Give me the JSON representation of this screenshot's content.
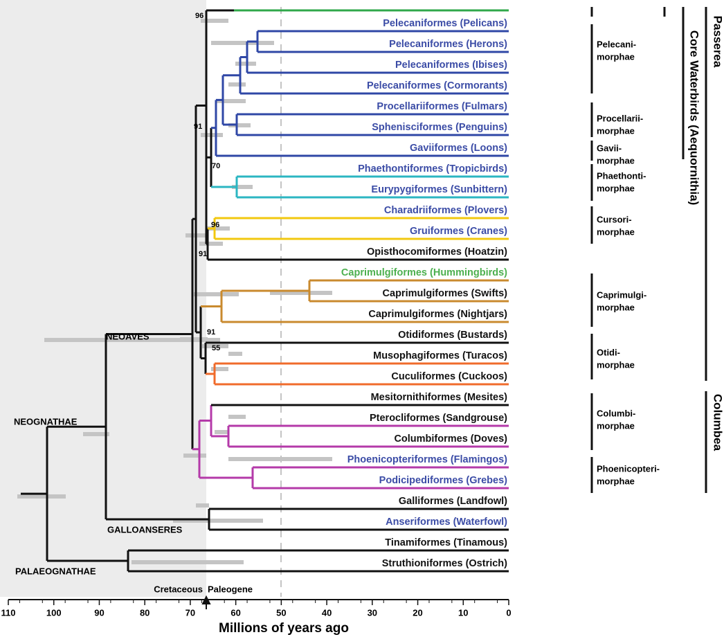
{
  "leaves": [
    {
      "label": "Pelecaniformes (Pelicans)",
      "color": "#3b4ca6"
    },
    {
      "label": "Pelecaniformes (Herons)",
      "color": "#3b4ca6"
    },
    {
      "label": "Pelecaniformes (Ibises)",
      "color": "#3b4ca6"
    },
    {
      "label": "Pelecaniformes (Cormorants)",
      "color": "#3b4ca6"
    },
    {
      "label": "Procellariiformes (Fulmars)",
      "color": "#3b4ca6"
    },
    {
      "label": "Sphenisciformes (Penguins)",
      "color": "#3b4ca6"
    },
    {
      "label": "Gaviiformes (Loons)",
      "color": "#3b4ca6"
    },
    {
      "label": "Phaethontiformes (Tropicbirds)",
      "color": "#3b4ca6"
    },
    {
      "label": "Eurypygiformes (Sunbittern)",
      "color": "#3b4ca6"
    },
    {
      "label": "Charadriiformes (Plovers)",
      "color": "#3b4ca6"
    },
    {
      "label": "Gruiformes (Cranes)",
      "color": "#3b4ca6"
    },
    {
      "label": "Opisthocomiformes (Hoatzin)",
      "color": "#111111"
    },
    {
      "label": "Caprimulgiformes (Hummingbirds)",
      "color": "#4cb04f"
    },
    {
      "label": "Caprimulgiformes (Swifts)",
      "color": "#111111"
    },
    {
      "label": "Caprimulgiformes (Nightjars)",
      "color": "#111111"
    },
    {
      "label": "Otidiformes (Bustards)",
      "color": "#111111"
    },
    {
      "label": "Musophagiformes (Turacos)",
      "color": "#111111"
    },
    {
      "label": "Cuculiformes (Cuckoos)",
      "color": "#111111"
    },
    {
      "label": "Mesitornithiformes (Mesites)",
      "color": "#111111"
    },
    {
      "label": "Pterocliformes (Sandgrouse)",
      "color": "#111111"
    },
    {
      "label": "Columbiformes (Doves)",
      "color": "#111111"
    },
    {
      "label": "Phoenicopteriformes (Flamingos)",
      "color": "#3b4ca6"
    },
    {
      "label": "Podicipediformes (Grebes)",
      "color": "#3b4ca6"
    },
    {
      "label": "Galliformes (Landfowl)",
      "color": "#111111"
    },
    {
      "label": "Anseriformes (Waterfowl)",
      "color": "#3b4ca6"
    },
    {
      "label": "Tinamiformes (Tinamous)",
      "color": "#111111"
    },
    {
      "label": "Struthioniformes (Ostrich)",
      "color": "#111111"
    }
  ],
  "node_supports": [
    "96",
    "91",
    "70",
    "96",
    "91",
    "91",
    "55"
  ],
  "clades": [
    "NEOAVES",
    "NEOGNATHAE",
    "GALLOANSERES",
    "PALAEOGNATHAE"
  ],
  "groups": [
    {
      "lines": [
        "Pelecani-",
        "morphae"
      ]
    },
    {
      "lines": [
        "Procellarii-",
        "morphae"
      ]
    },
    {
      "lines": [
        "Gavii-",
        "morphae"
      ]
    },
    {
      "lines": [
        "Phaethonti-",
        "morphae"
      ]
    },
    {
      "lines": [
        "Cursori-",
        "morphae"
      ]
    },
    {
      "lines": [
        "Caprimulgi-",
        "morphae"
      ]
    },
    {
      "lines": [
        "Otidi-",
        "morphae"
      ]
    },
    {
      "lines": [
        "Columbi-",
        "morphae"
      ]
    },
    {
      "lines": [
        "Phoenicopteri-",
        "morphae"
      ]
    }
  ],
  "superorders": [
    "Passerea",
    "Core Waterbirds (Aequornithia)",
    "Columbea"
  ],
  "periods": [
    "Cretaceous",
    "Paleogene"
  ],
  "axis": {
    "ticks": [
      "110",
      "100",
      "90",
      "80",
      "70",
      "60",
      "50",
      "40",
      "30",
      "20",
      "10",
      "0"
    ],
    "title": "Millions of years ago"
  }
}
